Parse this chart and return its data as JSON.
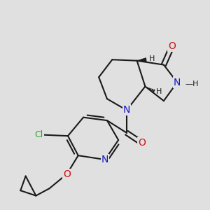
{
  "background_color": "#e0e0e0",
  "bond_color": "#1a1a1a",
  "bond_width": 1.5,
  "atom_colors": {
    "N": "#1414cc",
    "O": "#cc1414",
    "Cl": "#22aa22",
    "H": "#1a1a1a",
    "C": "#1a1a1a"
  },
  "font_size": 9,
  "stereo_font_size": 8,
  "figsize": [
    3.0,
    3.0
  ],
  "dpi": 100
}
